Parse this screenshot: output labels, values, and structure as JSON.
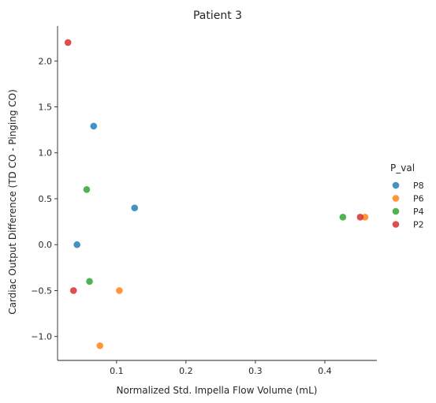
{
  "chart_data": {
    "type": "scatter",
    "title": "Patient 3",
    "xlabel": "Normalized Std. Impella Flow Volume (mL)",
    "ylabel": "Cardiac Output Difference (TD CO - Pinging CO)",
    "xlim": [
      0.015,
      0.475
    ],
    "ylim": [
      -1.26,
      2.38
    ],
    "xticks": [
      0.1,
      0.2,
      0.3,
      0.4
    ],
    "yticks": [
      -1.0,
      -0.5,
      0.0,
      0.5,
      1.0,
      1.5,
      2.0
    ],
    "xtick_labels": [
      "0.1",
      "0.2",
      "0.3",
      "0.4"
    ],
    "ytick_labels": [
      "−1.0",
      "−0.5",
      "0.0",
      "0.5",
      "1.0",
      "1.5",
      "2.0"
    ],
    "grid": false,
    "legend": {
      "title": "P_val",
      "placement": "right"
    },
    "series": [
      {
        "name": "P8",
        "color": "#1f77b4",
        "points": [
          [
            0.067,
            1.29
          ],
          [
            0.126,
            0.4
          ],
          [
            0.043,
            0.0
          ]
        ]
      },
      {
        "name": "P6",
        "color": "#ff7f0e",
        "points": [
          [
            0.458,
            0.3
          ],
          [
            0.104,
            -0.5
          ],
          [
            0.076,
            -1.1
          ]
        ]
      },
      {
        "name": "P4",
        "color": "#2ca02c",
        "points": [
          [
            0.057,
            0.6
          ],
          [
            0.426,
            0.3
          ],
          [
            0.061,
            -0.4
          ]
        ]
      },
      {
        "name": "P2",
        "color": "#d62728",
        "points": [
          [
            0.03,
            2.2
          ],
          [
            0.451,
            0.3
          ],
          [
            0.038,
            -0.5
          ]
        ]
      }
    ]
  }
}
